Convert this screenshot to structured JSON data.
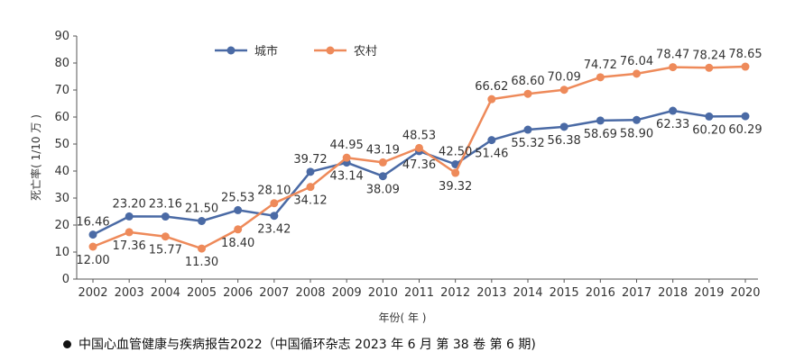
{
  "chart_data": {
    "type": "line",
    "title": "",
    "xlabel": "年份( 年 )",
    "ylabel": "死亡率( 1/10 万 )",
    "ylim": [
      0,
      90
    ],
    "yticks": [
      0,
      10,
      20,
      30,
      40,
      50,
      60,
      70,
      80,
      90
    ],
    "categories": [
      "2002",
      "2003",
      "2004",
      "2005",
      "2006",
      "2007",
      "2008",
      "2009",
      "2010",
      "2011",
      "2012",
      "2013",
      "2014",
      "2015",
      "2016",
      "2017",
      "2018",
      "2019",
      "2020"
    ],
    "legend_position": "top-left",
    "series": [
      {
        "name": "城市",
        "color": "#4a6aa5",
        "values": [
          16.46,
          23.2,
          23.16,
          21.5,
          25.53,
          23.42,
          39.72,
          43.14,
          38.09,
          47.36,
          42.5,
          51.46,
          55.32,
          56.38,
          58.69,
          58.9,
          62.33,
          60.2,
          60.29
        ],
        "labels": [
          "16.46",
          "23.20",
          "23.16",
          "21.50",
          "25.53",
          "23.42",
          "39.72",
          "43.14",
          "38.09",
          "47.36",
          "42.50",
          "51.46",
          "55.32",
          "56.38",
          "58.69",
          "58.90",
          "62.33",
          "60.20",
          "60.29"
        ]
      },
      {
        "name": "农村",
        "color": "#ee8a5a",
        "values": [
          12.0,
          17.36,
          15.77,
          11.3,
          18.4,
          28.1,
          34.12,
          44.95,
          43.19,
          48.53,
          39.32,
          66.62,
          68.6,
          70.09,
          74.72,
          76.04,
          78.47,
          78.24,
          78.65
        ],
        "labels": [
          "12.00",
          "17.36",
          "15.77",
          "11.30",
          "18.40",
          "28.10",
          "34.12",
          "44.95",
          "43.19",
          "48.53",
          "39.32",
          "66.62",
          "68.60",
          "70.09",
          "74.72",
          "76.04",
          "78.47",
          "78.24",
          "78.65"
        ]
      }
    ]
  },
  "source_note": "中国心血管健康与疾病报告2022（中国循环杂志 2023 年 6 月 第 38 卷 第 6 期)"
}
